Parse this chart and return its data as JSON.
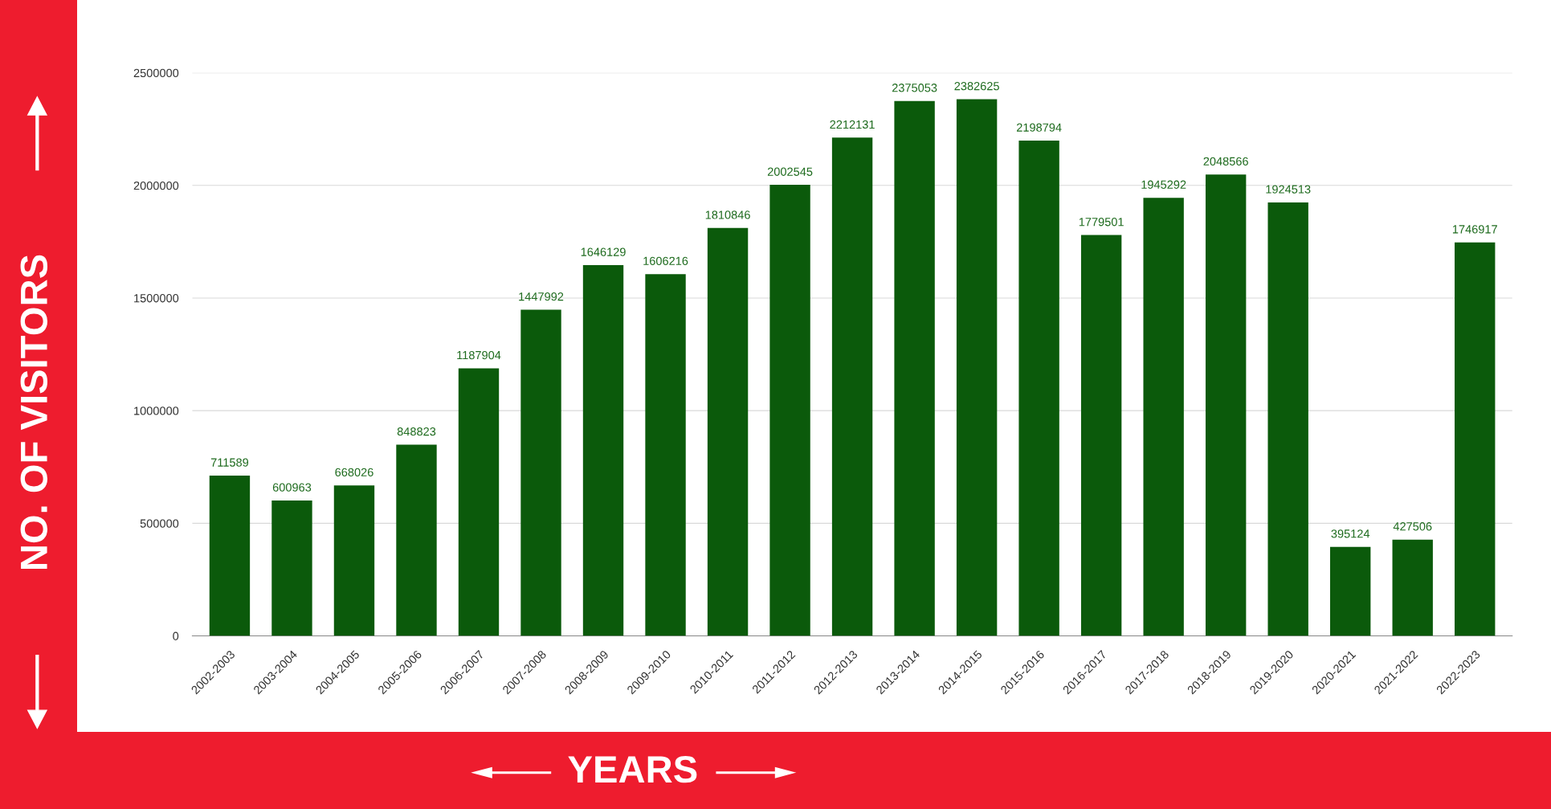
{
  "chart_data": {
    "type": "bar",
    "xlabel": "YEARS",
    "ylabel": "NO. OF VISITORS",
    "categories": [
      "2002-2003",
      "2003-2004",
      "2004-2005",
      "2005-2006",
      "2006-2007",
      "2007-2008",
      "2008-2009",
      "2009-2010",
      "2010-2011",
      "2011-2012",
      "2012-2013",
      "2013-2014",
      "2014-2015",
      "2015-2016",
      "2016-2017",
      "2017-2018",
      "2018-2019",
      "2019-2020",
      "2020-2021",
      "2021-2022",
      "2022-2023"
    ],
    "values": [
      711589,
      600963,
      668026,
      848823,
      1187904,
      1447992,
      1646129,
      1606216,
      1810846,
      2002545,
      2212131,
      2375053,
      2382625,
      2198794,
      1779501,
      1945292,
      2048566,
      1924513,
      395124,
      427506,
      1746917
    ],
    "color": "#0b5a0b",
    "ylim": [
      0,
      2500000
    ],
    "yticks": [
      0,
      500000,
      1000000,
      1500000,
      2000000,
      2500000
    ],
    "grid": "y",
    "data_labels": true,
    "legend": false
  }
}
